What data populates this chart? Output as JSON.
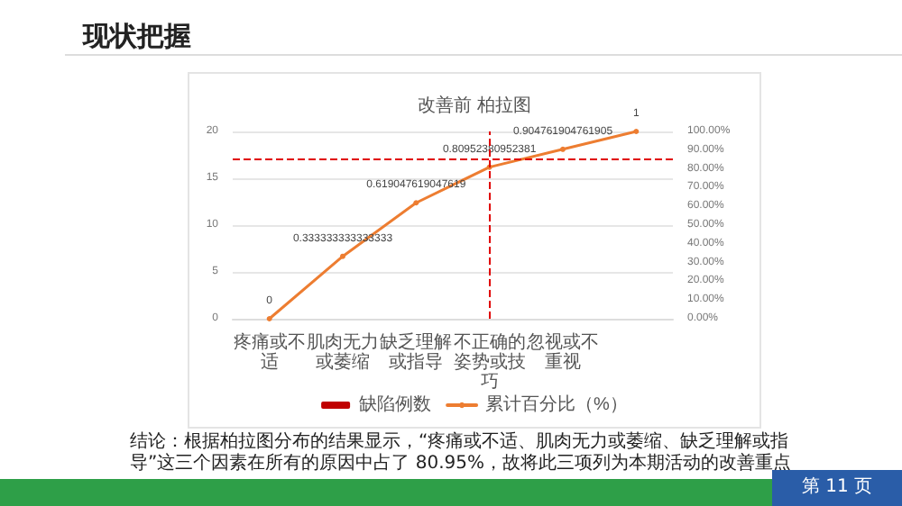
{
  "chart_data": {
    "type": "line",
    "title": "改善前 柏拉图",
    "annotations": [
      "现状把握",
      "结论：根据柏拉图分布的结果显示，“疼痛或不适、肌肉无力或萎缩、缺乏理解或指导”这三个因素在所有的原因中占了 80.95%，故将此三项列为本期活动的改善重点",
      "第 11 页"
    ],
    "categories": [
      "疼痛或不适",
      "肌肉无力或萎缩",
      "缺乏理解或指导",
      "不正确的姿势或技巧",
      "忽视或不重视",
      null
    ],
    "series": [
      {
        "name": "缺陷例数",
        "type": "bar",
        "color": "#c00000",
        "values": [
          null,
          null,
          null,
          null,
          null,
          null
        ]
      },
      {
        "name": "累计百分比（%）",
        "axis": "y2",
        "color": "#ed7d31",
        "values": [
          0,
          0.333333333333333,
          0.619047619047619,
          0.80952380952381,
          0.904761904761905,
          1
        ],
        "value_labels": [
          "0",
          "0.333333333333333",
          "0.619047619047619",
          "0.80952380952381",
          "0.904761904761905",
          "1"
        ]
      }
    ],
    "ylim": [
      0,
      20
    ],
    "yticks": [
      0,
      5,
      10,
      15,
      20
    ],
    "y2lim": [
      0,
      1
    ],
    "y2ticks": [
      {
        "value": 0,
        "label": "0.00%"
      },
      {
        "value": 0.1,
        "label": "10.00%"
      },
      {
        "value": 0.2,
        "label": "20.00%"
      },
      {
        "value": 0.3,
        "label": "30.00%"
      },
      {
        "value": 0.4,
        "label": "40.00%"
      },
      {
        "value": 0.5,
        "label": "50.00%"
      },
      {
        "value": 0.6,
        "label": "60.00%"
      },
      {
        "value": 0.7,
        "label": "70.00%"
      },
      {
        "value": 0.8,
        "label": "80.00%"
      },
      {
        "value": 0.9,
        "label": "90.00%"
      },
      {
        "value": 1,
        "label": "100.00%"
      }
    ],
    "ref_lines": [
      {
        "axis": "y2",
        "value": 0.85,
        "color": "#e00000",
        "line_style": "dashed"
      },
      {
        "axis": "x",
        "value": "不正确的姿势或技巧",
        "color": "#e00000",
        "line_style": "dashed"
      }
    ],
    "grid": "y",
    "legend": "bottom",
    "marker": "circle",
    "line_style": "solid"
  }
}
